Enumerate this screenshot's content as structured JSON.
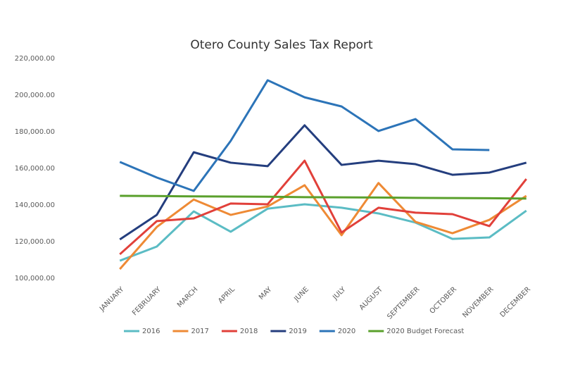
{
  "chart_data": {
    "type": "line",
    "title": "Otero County Sales Tax Report",
    "categories": [
      "JANUARY",
      "FEBRUARY",
      "MARCH",
      "APRIL",
      "MAY",
      "JUNE",
      "JULY",
      "AUGUST",
      "SEPTEMBER",
      "OCTOBER",
      "NOVEMBER",
      "DECEMBER"
    ],
    "series": [
      {
        "name": "2016",
        "color": "#5bbcc4",
        "values": [
          109600,
          117300,
          136500,
          125400,
          138000,
          140400,
          138500,
          135400,
          130400,
          121500,
          122300,
          136900
        ]
      },
      {
        "name": "2017",
        "color": "#ee8a35",
        "values": [
          105000,
          128000,
          143000,
          134600,
          139200,
          150800,
          123500,
          152000,
          130800,
          124600,
          131900,
          145000
        ]
      },
      {
        "name": "2018",
        "color": "#e1403a",
        "values": [
          113100,
          131200,
          132700,
          140800,
          140400,
          164200,
          125000,
          138500,
          135800,
          135000,
          128500,
          154200
        ]
      },
      {
        "name": "2019",
        "color": "#243e7e",
        "values": [
          121200,
          134600,
          168800,
          163100,
          161200,
          183500,
          161900,
          164200,
          162300,
          156500,
          157700,
          163100
        ]
      },
      {
        "name": "2020",
        "color": "#2c74b8",
        "values": [
          163500,
          155000,
          147700,
          175000,
          208100,
          198800,
          193800,
          180400,
          186900,
          170400,
          170000,
          null
        ]
      },
      {
        "name": "2020 Budget Forecast",
        "color": "#5aa02c",
        "values": [
          145000,
          144900,
          144700,
          144600,
          144500,
          144300,
          144200,
          144100,
          143900,
          143800,
          143700,
          143500
        ]
      }
    ],
    "ylim": [
      100000,
      220000
    ],
    "yticks": [
      {
        "value": 100000,
        "label": "100,000.00"
      },
      {
        "value": 120000,
        "label": "120,000.00"
      },
      {
        "value": 140000,
        "label": "140,000.00"
      },
      {
        "value": 160000,
        "label": "160,000.00"
      },
      {
        "value": 180000,
        "label": "180,000.00"
      },
      {
        "value": 200000,
        "label": "200,000.00"
      },
      {
        "value": 220000,
        "label": "220,000.00"
      }
    ],
    "grid": false,
    "legend": "bottom"
  }
}
